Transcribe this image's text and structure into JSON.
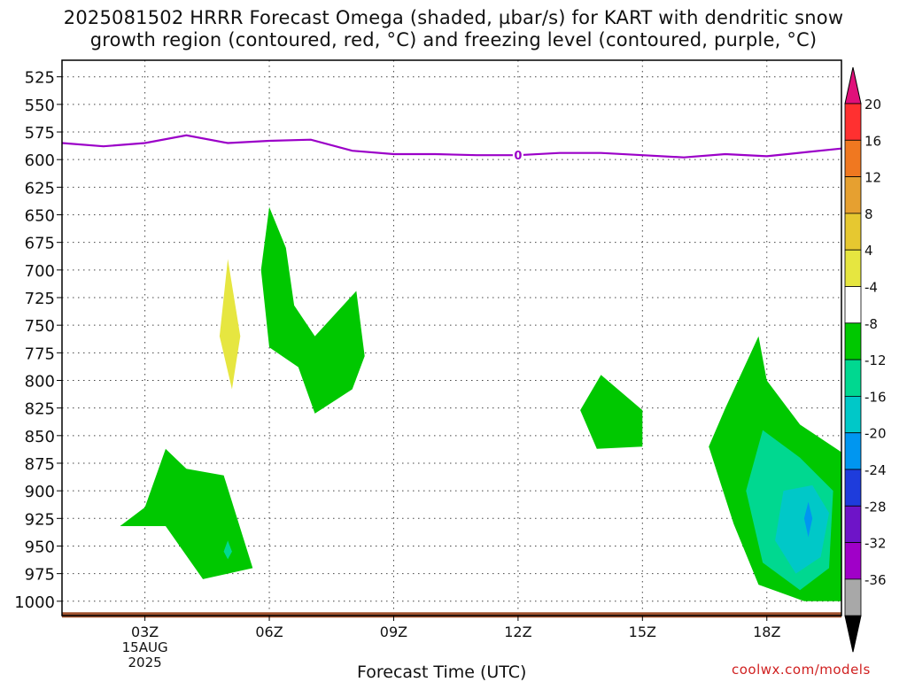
{
  "title_line1": "2025081502 HRRR Forecast Omega (shaded, µbar/s) for KART with dendritic snow",
  "title_line2": "growth region (contoured, red, °C) and freezing level (contoured, purple, °C)",
  "xlabel": "Forecast Time (UTC)",
  "credit": "coolwx.com/models",
  "colors": {
    "freezing_level": "#9b00c8",
    "terrain": "#a0522d"
  },
  "chart_data": {
    "type": "heatmap",
    "title": "2025081502 HRRR Forecast Omega (shaded, µbar/s) for KART with dendritic snow growth region (contoured, red, °C) and freezing level (contoured, purple, °C)",
    "xlabel": "Forecast Time (UTC)",
    "ylabel": "",
    "x_ticks": [
      "03Z",
      "06Z",
      "09Z",
      "12Z",
      "15Z",
      "18Z"
    ],
    "x_tick_hours": [
      3,
      6,
      9,
      12,
      15,
      18
    ],
    "x_date_labels": [
      "15AUG",
      "2025"
    ],
    "xlim": [
      1,
      19.8
    ],
    "y_ticks": [
      525,
      550,
      575,
      600,
      625,
      650,
      675,
      700,
      725,
      750,
      775,
      800,
      825,
      850,
      875,
      900,
      925,
      950,
      975,
      1000
    ],
    "ylim": [
      1013,
      510
    ],
    "grid": true,
    "colorbar": {
      "labels": [
        "20",
        "16",
        "12",
        "8",
        "4",
        "-4",
        "-8",
        "-12",
        "-16",
        "-20",
        "-24",
        "-28",
        "-32",
        "-36"
      ],
      "levels": [
        20,
        16,
        12,
        8,
        4,
        -4,
        -8,
        -12,
        -16,
        -20,
        -24,
        -28,
        -32,
        -36
      ],
      "colors": [
        "#ff3030",
        "#f07820",
        "#e6a030",
        "#e6c830",
        "#e6e640",
        "#ffffff",
        "#00c800",
        "#00d890",
        "#00c8c8",
        "#0096f0",
        "#1e3cdc",
        "#6e14c8",
        "#a000c8",
        "#a8a8a8"
      ],
      "top_arrow_color": "#e0107a",
      "bottom_arrow_color": "#000000"
    },
    "freezing_level": {
      "label": "0",
      "x": [
        1,
        2,
        3,
        4,
        5,
        6,
        7,
        8,
        9,
        10,
        11,
        12,
        13,
        14,
        15,
        16,
        17,
        18,
        19,
        19.8
      ],
      "y": [
        585,
        588,
        585,
        578,
        585,
        583,
        582,
        592,
        595,
        595,
        596,
        596,
        594,
        594,
        596,
        598,
        595,
        597,
        593,
        590
      ]
    },
    "omega_regions": [
      {
        "name": "-4",
        "color": "#00c800",
        "points": [
          [
            6.0,
            643
          ],
          [
            6.4,
            680
          ],
          [
            6.6,
            732
          ],
          [
            7.1,
            760
          ],
          [
            8.1,
            719
          ],
          [
            8.3,
            778
          ],
          [
            8.0,
            808
          ],
          [
            7.1,
            830
          ],
          [
            6.7,
            788
          ],
          [
            6.0,
            770
          ],
          [
            5.8,
            700
          ]
        ]
      },
      {
        "name": "-4",
        "color": "#00c800",
        "points": [
          [
            3.5,
            862
          ],
          [
            4.0,
            880
          ],
          [
            4.9,
            886
          ],
          [
            5.6,
            970
          ],
          [
            4.4,
            980
          ],
          [
            3.5,
            932
          ],
          [
            2.4,
            932
          ],
          [
            3.0,
            915
          ]
        ]
      },
      {
        "name": "-8",
        "color": "#00d890",
        "points": [
          [
            4.9,
            955
          ],
          [
            5.0,
            945
          ],
          [
            5.1,
            955
          ],
          [
            5.0,
            962
          ]
        ]
      },
      {
        "name": "4",
        "color": "#e6e640",
        "points": [
          [
            5.0,
            690
          ],
          [
            5.3,
            760
          ],
          [
            5.1,
            808
          ],
          [
            4.8,
            760
          ]
        ]
      },
      {
        "name": "-4",
        "color": "#00c800",
        "points": [
          [
            14.0,
            795
          ],
          [
            15.0,
            827
          ],
          [
            15.0,
            860
          ],
          [
            13.9,
            862
          ],
          [
            13.5,
            827
          ]
        ]
      },
      {
        "name": "-4",
        "color": "#00c800",
        "points": [
          [
            17.8,
            760
          ],
          [
            18.0,
            800
          ],
          [
            18.8,
            840
          ],
          [
            19.8,
            865
          ],
          [
            19.8,
            1000
          ],
          [
            18.9,
            1000
          ],
          [
            17.8,
            985
          ],
          [
            17.2,
            930
          ],
          [
            16.6,
            860
          ],
          [
            17.0,
            825
          ]
        ]
      },
      {
        "name": "-8",
        "color": "#00d890",
        "points": [
          [
            17.9,
            845
          ],
          [
            18.8,
            870
          ],
          [
            19.6,
            900
          ],
          [
            19.5,
            970
          ],
          [
            18.8,
            990
          ],
          [
            17.9,
            965
          ],
          [
            17.5,
            900
          ]
        ]
      },
      {
        "name": "-12",
        "color": "#00c8c8",
        "points": [
          [
            18.4,
            900
          ],
          [
            19.1,
            895
          ],
          [
            19.5,
            920
          ],
          [
            19.3,
            960
          ],
          [
            18.7,
            975
          ],
          [
            18.2,
            945
          ]
        ]
      },
      {
        "name": "-16",
        "color": "#0096f0",
        "points": [
          [
            19.0,
            910
          ],
          [
            19.1,
            925
          ],
          [
            19.0,
            942
          ],
          [
            18.9,
            925
          ]
        ]
      }
    ],
    "terrain": {
      "x_start": 1,
      "x_end": 19.8,
      "pressure": 1010
    }
  }
}
